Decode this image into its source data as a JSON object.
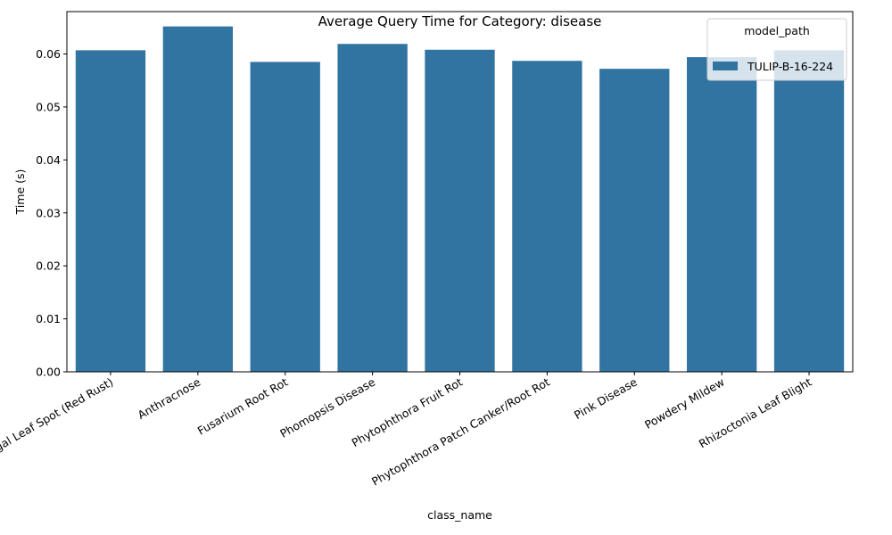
{
  "chart_data": {
    "type": "bar",
    "title": "Average Query Time for Category: disease",
    "xlabel": "class_name",
    "ylabel": "Time (s)",
    "categories": [
      "Algal Leaf Spot (Red Rust)",
      "Anthracnose",
      "Fusarium Root Rot",
      "Phomopsis Disease",
      "Phytophthora Fruit Rot",
      "Phytophthora Patch Canker/Root Rot",
      "Pink Disease",
      "Powdery Mildew",
      "Rhizoctonia Leaf Blight"
    ],
    "series": [
      {
        "name": "TULIP-B-16-224",
        "color": "#3274a1",
        "values": [
          0.0607,
          0.0652,
          0.0585,
          0.0619,
          0.0608,
          0.0587,
          0.0572,
          0.0594,
          0.0607
        ]
      }
    ],
    "ylim": [
      0,
      0.068
    ],
    "yticks": [
      "0.00",
      "0.01",
      "0.02",
      "0.03",
      "0.04",
      "0.05",
      "0.06"
    ],
    "legend": {
      "title": "model_path",
      "placement": "top-right"
    },
    "grid": false
  }
}
